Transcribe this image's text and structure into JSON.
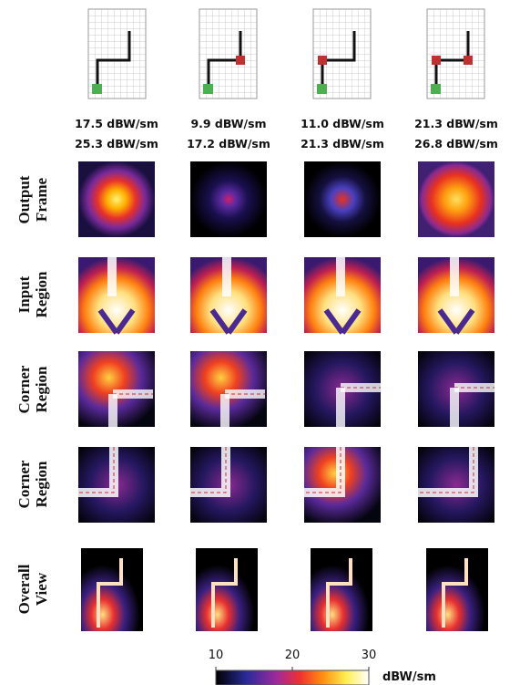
{
  "columns": [
    {
      "top": "17.5 dBW/sm",
      "bottom": "25.3 dBW/sm"
    },
    {
      "top": "9.9 dBW/sm",
      "bottom": "17.2 dBW/sm"
    },
    {
      "top": "11.0 dBW/sm",
      "bottom": "21.3 dBW/sm"
    },
    {
      "top": "21.3 dBW/sm",
      "bottom": "26.8 dBW/sm"
    }
  ],
  "rows": [
    [
      "Output",
      "Frame"
    ],
    [
      "Input",
      "Region"
    ],
    [
      "Corner",
      "Region"
    ],
    [
      "Corner",
      "Region"
    ],
    [
      "Overall",
      "View"
    ]
  ],
  "colorbar": {
    "ticks": [
      10,
      20,
      30
    ],
    "unit": "dBW/sm"
  }
}
